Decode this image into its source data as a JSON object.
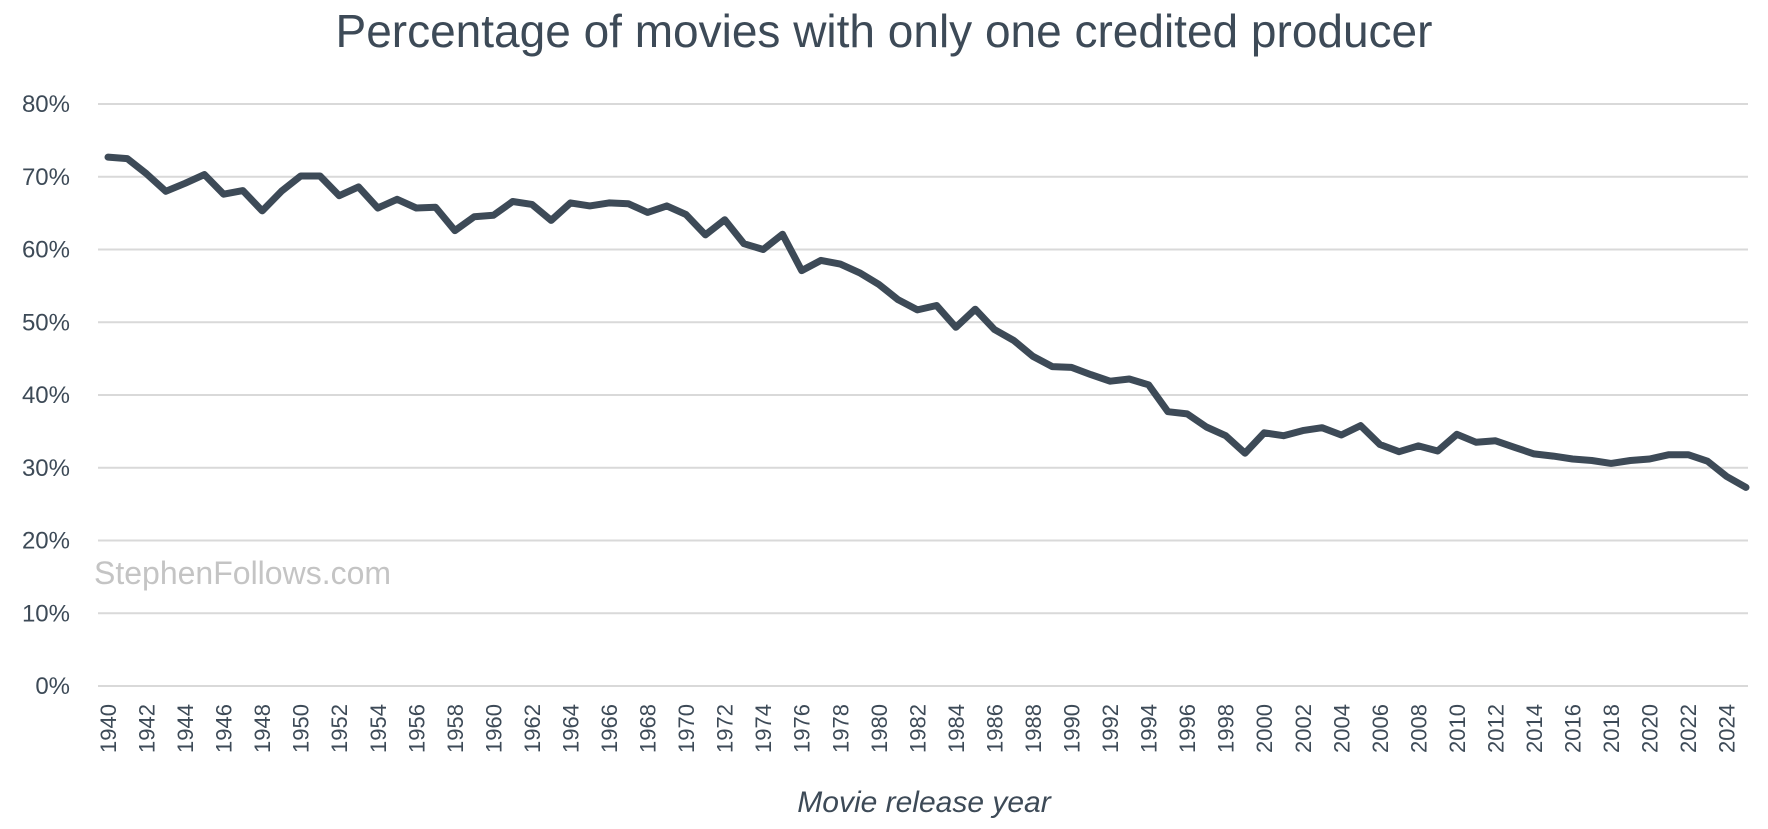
{
  "chart_data": {
    "type": "line",
    "title": "Percentage of movies with only one credited producer",
    "xlabel": "Movie release year",
    "ylabel": "",
    "watermark": "StephenFollows.com",
    "ylim": [
      0,
      80
    ],
    "y_ticks": [
      "0%",
      "10%",
      "20%",
      "30%",
      "40%",
      "50%",
      "60%",
      "70%",
      "80%"
    ],
    "x_ticks": [
      "1940",
      "1942",
      "1944",
      "1946",
      "1948",
      "1950",
      "1952",
      "1954",
      "1956",
      "1958",
      "1960",
      "1962",
      "1964",
      "1966",
      "1968",
      "1970",
      "1972",
      "1974",
      "1976",
      "1978",
      "1980",
      "1982",
      "1984",
      "1986",
      "1988",
      "1990",
      "1992",
      "1994",
      "1996",
      "1998",
      "2000",
      "2002",
      "2004",
      "2006",
      "2008",
      "2010",
      "2012",
      "2014",
      "2016",
      "2018",
      "2020",
      "2022",
      "2024"
    ],
    "grid": true,
    "colors": {
      "line": "#3d4a57",
      "grid": "#d9d9d9",
      "text": "#3d4a57",
      "watermark": "#c4c4c4"
    },
    "x": [
      1940,
      1941,
      1942,
      1943,
      1944,
      1945,
      1946,
      1947,
      1948,
      1949,
      1950,
      1951,
      1952,
      1953,
      1954,
      1955,
      1956,
      1957,
      1958,
      1959,
      1960,
      1961,
      1962,
      1963,
      1964,
      1965,
      1966,
      1967,
      1968,
      1969,
      1970,
      1971,
      1972,
      1973,
      1974,
      1975,
      1976,
      1977,
      1978,
      1979,
      1980,
      1981,
      1982,
      1983,
      1984,
      1985,
      1986,
      1987,
      1988,
      1989,
      1990,
      1991,
      1992,
      1993,
      1994,
      1995,
      1996,
      1997,
      1998,
      1999,
      2000,
      2001,
      2002,
      2003,
      2004,
      2005,
      2006,
      2007,
      2008,
      2009,
      2010,
      2011,
      2012,
      2013,
      2014,
      2015,
      2016,
      2017,
      2018,
      2019,
      2020,
      2021,
      2022,
      2023,
      2024,
      2025
    ],
    "series": [
      {
        "values": [
          72.7,
          72.5,
          70.4,
          68.0,
          69.1,
          70.3,
          67.6,
          68.1,
          65.3,
          68.0,
          70.1,
          70.1,
          67.4,
          68.6,
          65.7,
          66.9,
          65.7,
          65.8,
          62.6,
          64.5,
          64.7,
          66.6,
          66.2,
          64.0,
          66.4,
          66.0,
          66.4,
          66.3,
          65.1,
          66.0,
          64.8,
          62.0,
          64.1,
          60.8,
          60.0,
          62.1,
          57.1,
          58.5,
          58.0,
          56.8,
          55.2,
          53.1,
          51.7,
          52.3,
          49.3,
          51.8,
          49.0,
          47.5,
          45.3,
          43.9,
          43.8,
          42.8,
          41.9,
          42.2,
          41.4,
          37.7,
          37.4,
          35.6,
          34.4,
          32.0,
          34.8,
          34.4,
          35.1,
          35.5,
          34.5,
          35.8,
          33.2,
          32.2,
          33.0,
          32.3,
          34.6,
          33.5,
          33.7,
          32.8,
          31.9,
          31.6,
          31.2,
          31.0,
          30.6,
          31.0,
          31.2,
          31.8,
          31.8,
          30.9,
          28.8,
          27.3
        ]
      }
    ]
  }
}
